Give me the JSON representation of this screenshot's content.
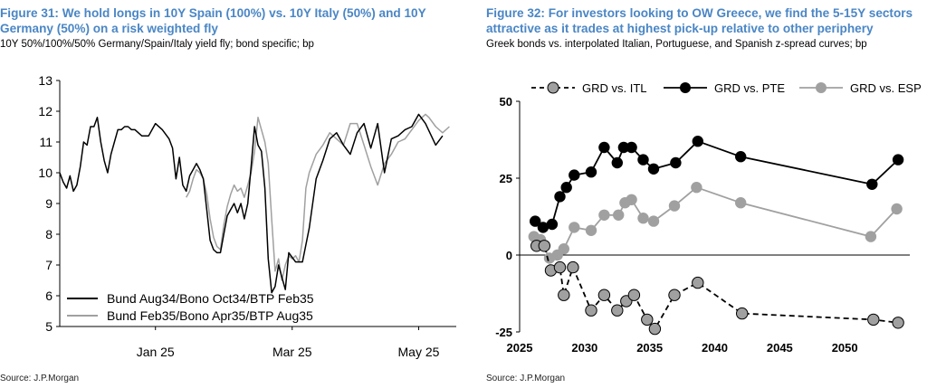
{
  "figures": [
    {
      "title": "Figure 31: We hold longs in 10Y Spain (100%) vs. 10Y Italy (50%) and 10Y Germany (50%) on a risk weighted fly",
      "subtitle": "10Y 50%/100%/50% Germany/Spain/Italy yield fly; bond specific; bp",
      "source": "Source: J.P.Morgan"
    },
    {
      "title": "Figure 32: For investors looking to OW Greece, we find the 5-15Y sectors attractive as it trades at highest pick-up relative to other periphery",
      "subtitle": "Greek bonds vs. interpolated Italian, Portuguese, and Spanish z-spread curves; bp",
      "source": "Source: J.P.Morgan"
    }
  ],
  "colors": {
    "title": "#4a86c5",
    "dark": "#000000",
    "grey": "#a0a0a0"
  },
  "chart_data": [
    {
      "type": "line",
      "ylim": [
        5,
        13
      ],
      "yticks": [
        5,
        6,
        7,
        8,
        9,
        10,
        11,
        12,
        13
      ],
      "xlim": [
        0,
        116
      ],
      "xticks": [
        {
          "x": 28,
          "label": "Jan 25"
        },
        {
          "x": 68,
          "label": "Mar 25"
        },
        {
          "x": 105,
          "label": "May 25"
        }
      ],
      "legend_position": "bottom-left",
      "series": [
        {
          "name": "Bund Aug34/Bono Oct34/BTP Feb35",
          "color": "#000000",
          "y": [
            10.0,
            9.7,
            9.5,
            9.9,
            9.4,
            9.6,
            10.2,
            11.0,
            10.9,
            11.5,
            11.5,
            11.8,
            11.0,
            10.4,
            10.0,
            10.6,
            11.0,
            11.4,
            11.4,
            11.5,
            11.5,
            11.4,
            11.4,
            11.2,
            11.2,
            11.6,
            11.4,
            11.1,
            10.8,
            9.8,
            10.5,
            9.6,
            9.4,
            9.9,
            10.1,
            10.3,
            10.1,
            9.8,
            8.8,
            7.8,
            7.5,
            7.4,
            7.4,
            8.0,
            8.6,
            8.8,
            9.0,
            8.7,
            9.0,
            8.5,
            9.0,
            10.2,
            11.5,
            10.9,
            10.7,
            9.5,
            7.2,
            6.1,
            6.3,
            7.0,
            6.6,
            6.2,
            7.4,
            7.1,
            7.1,
            8.2,
            9.8,
            10.4,
            11.1,
            11.3,
            10.9,
            10.6,
            11.3,
            11.6,
            10.8,
            11.6,
            10.0,
            11.1,
            11.2,
            11.4,
            11.5,
            11.9,
            11.6,
            10.9,
            11.2
          ],
          "x": [
            0,
            1,
            2,
            3,
            4,
            5,
            6,
            7,
            8,
            9,
            10,
            11,
            12,
            13,
            14,
            15,
            16,
            17,
            18,
            19,
            20,
            21,
            22,
            24,
            26,
            28,
            30,
            32,
            33,
            34,
            35,
            36,
            37,
            38,
            39,
            40,
            41,
            42,
            43,
            44,
            45,
            46,
            47,
            48,
            49,
            50,
            51,
            52,
            53,
            54,
            55,
            56,
            57,
            58,
            59,
            60,
            61,
            62,
            63,
            64,
            65,
            66,
            67,
            69,
            71,
            73,
            75,
            77,
            79,
            81,
            83,
            85,
            87,
            89,
            91,
            93,
            95,
            97,
            99,
            101,
            103,
            105,
            107,
            110,
            112
          ]
        },
        {
          "name": "Bund Feb35/Bono Apr35/BTP Aug35",
          "color": "#a0a0a0",
          "y": [
            9.2,
            9.4,
            9.8,
            10.1,
            10.0,
            9.8,
            9.3,
            8.5,
            7.9,
            7.6,
            7.5,
            8.3,
            8.9,
            9.3,
            9.6,
            9.4,
            9.5,
            9.2,
            9.6,
            10.0,
            10.7,
            11.8,
            11.4,
            11.0,
            10.3,
            8.5,
            6.8,
            7.2,
            6.5,
            7.0,
            7.3,
            7.2,
            7.3,
            7.1,
            7.8,
            9.5,
            10.0,
            10.6,
            10.9,
            11.3,
            11.1,
            10.9,
            11.6,
            11.6,
            10.9,
            10.2,
            9.6,
            10.3,
            10.6,
            11.0,
            11.1,
            11.4,
            11.7,
            11.9,
            11.8,
            11.5,
            11.3,
            11.5
          ],
          "x": [
            37,
            38,
            39,
            40,
            41,
            42,
            43,
            44,
            45,
            46,
            47,
            48,
            49,
            50,
            51,
            52,
            53,
            54,
            55,
            56,
            57,
            58,
            59,
            60,
            61,
            62,
            63,
            64,
            65,
            66,
            67,
            68,
            69,
            70,
            71,
            72,
            73,
            75,
            77,
            79,
            81,
            83,
            85,
            87,
            89,
            91,
            93,
            95,
            97,
            99,
            101,
            103,
            105,
            107,
            108,
            110,
            112,
            114
          ]
        }
      ]
    },
    {
      "type": "line",
      "xlim": [
        2025,
        2055
      ],
      "ylim": [
        -25,
        50
      ],
      "xticks": [
        2025,
        2030,
        2035,
        2040,
        2045,
        2050
      ],
      "yticks": [
        50,
        25,
        0,
        -25
      ],
      "legend_position": "top",
      "series": [
        {
          "name": "GRD vs. ITL",
          "color": "#000000",
          "dashed": true,
          "x": [
            2026.3,
            2026.9,
            2027.4,
            2028.1,
            2028.4,
            2029.1,
            2030.5,
            2031.5,
            2032.5,
            2033.2,
            2033.8,
            2034.8,
            2035.4,
            2036.9,
            2038.7,
            2042.1,
            2052.2,
            2054.1
          ],
          "y": [
            3,
            3,
            -5,
            -4,
            -13,
            -4,
            -18,
            -13,
            -18,
            -15,
            -13,
            -21,
            -24,
            -13,
            -9,
            -19,
            -21,
            -22
          ]
        },
        {
          "name": "GRD vs. PTE",
          "color": "#000000",
          "dashed": false,
          "x": [
            2026.2,
            2026.8,
            2027.5,
            2028.1,
            2028.6,
            2029.2,
            2030.5,
            2031.5,
            2032.5,
            2033.0,
            2033.6,
            2034.5,
            2035.3,
            2037.0,
            2038.7,
            2042.0,
            2052.1,
            2054.1
          ],
          "y": [
            11,
            9,
            10,
            19,
            22,
            26,
            27,
            35,
            30,
            35,
            35,
            31,
            28,
            30,
            37,
            32,
            23,
            31
          ]
        },
        {
          "name": "GRD vs. ESP",
          "color": "#a0a0a0",
          "dashed": false,
          "x": [
            2026.1,
            2026.6,
            2027.3,
            2027.9,
            2028.4,
            2029.2,
            2030.5,
            2031.5,
            2032.6,
            2033.1,
            2033.6,
            2034.5,
            2035.3,
            2036.9,
            2038.6,
            2042.0,
            2052.0,
            2054.0
          ],
          "y": [
            6,
            5,
            -1,
            0,
            2,
            9,
            8,
            13,
            13,
            17,
            18,
            12,
            11,
            16,
            22,
            17,
            6,
            15
          ]
        }
      ]
    }
  ]
}
